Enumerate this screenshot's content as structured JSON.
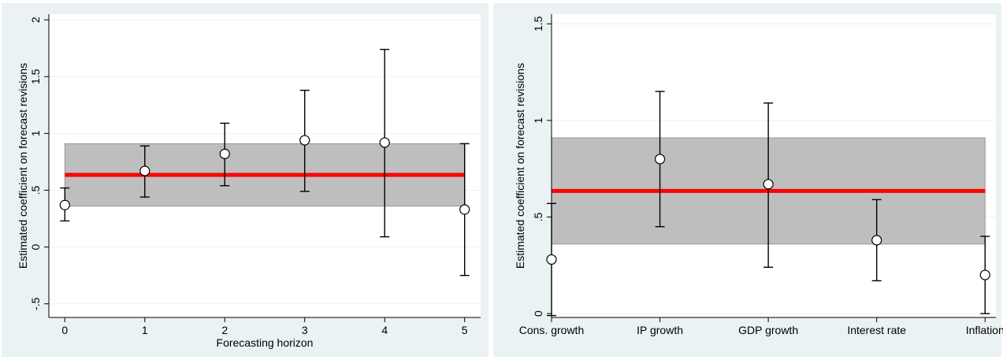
{
  "chart_data": [
    {
      "type": "scatter",
      "subtype": "point-estimate-with-confidence-interval",
      "title": "",
      "xlabel": "Forecasting horizon",
      "ylabel": "Estimated coefficient on forecast revisions",
      "x": [
        0,
        1,
        2,
        3,
        4,
        5
      ],
      "x_tick_labels": [
        "0",
        "1",
        "2",
        "3",
        "4",
        "5"
      ],
      "y_ticks": [
        -0.5,
        0,
        0.5,
        1,
        1.5,
        2
      ],
      "y_tick_labels": [
        "-.5",
        "0",
        ".5",
        "1",
        "1.5",
        "2"
      ],
      "xlim": [
        -0.2,
        5.2
      ],
      "ylim": [
        -0.62,
        2.05
      ],
      "points": [
        {
          "x": 0,
          "y": 0.37,
          "lower": 0.23,
          "upper": 0.52
        },
        {
          "x": 1,
          "y": 0.67,
          "lower": 0.44,
          "upper": 0.89
        },
        {
          "x": 2,
          "y": 0.82,
          "lower": 0.54,
          "upper": 1.09
        },
        {
          "x": 3,
          "y": 0.94,
          "lower": 0.49,
          "upper": 1.38
        },
        {
          "x": 4,
          "y": 0.92,
          "lower": 0.09,
          "upper": 1.74
        },
        {
          "x": 5,
          "y": 0.33,
          "lower": -0.25,
          "upper": 0.91
        }
      ],
      "reference": {
        "estimate": 0.635,
        "lower": 0.36,
        "upper": 0.91
      },
      "grid": true,
      "colors": {
        "reference_line": "#ff0000",
        "band": "#bebebe",
        "panel_background": "#eaf2f3"
      }
    },
    {
      "type": "scatter",
      "subtype": "point-estimate-with-confidence-interval",
      "title": "",
      "xlabel": "",
      "ylabel": "Estimated coefficient on forecast revisions",
      "categories": [
        "Cons. growth",
        "IP growth",
        "GDP growth",
        "Interest rate",
        "Inflation"
      ],
      "y_ticks": [
        0,
        0.5,
        1,
        1.5
      ],
      "y_tick_labels": [
        "0",
        ".5",
        "1",
        "1.5"
      ],
      "xlim": [
        0,
        4.1
      ],
      "ylim": [
        -0.02,
        1.55
      ],
      "points": [
        {
          "category": "Cons. growth",
          "y": 0.28,
          "lower": -0.01,
          "upper": 0.57
        },
        {
          "category": "IP growth",
          "y": 0.8,
          "lower": 0.45,
          "upper": 1.15
        },
        {
          "category": "GDP growth",
          "y": 0.67,
          "lower": 0.24,
          "upper": 1.09
        },
        {
          "category": "Interest rate",
          "y": 0.38,
          "lower": 0.17,
          "upper": 0.59
        },
        {
          "category": "Inflation",
          "y": 0.2,
          "lower": 0.0,
          "upper": 0.4
        }
      ],
      "reference": {
        "estimate": 0.635,
        "lower": 0.36,
        "upper": 0.91
      },
      "grid": true,
      "colors": {
        "reference_line": "#ff0000",
        "band": "#bebebe",
        "panel_background": "#eaf2f3"
      }
    }
  ]
}
